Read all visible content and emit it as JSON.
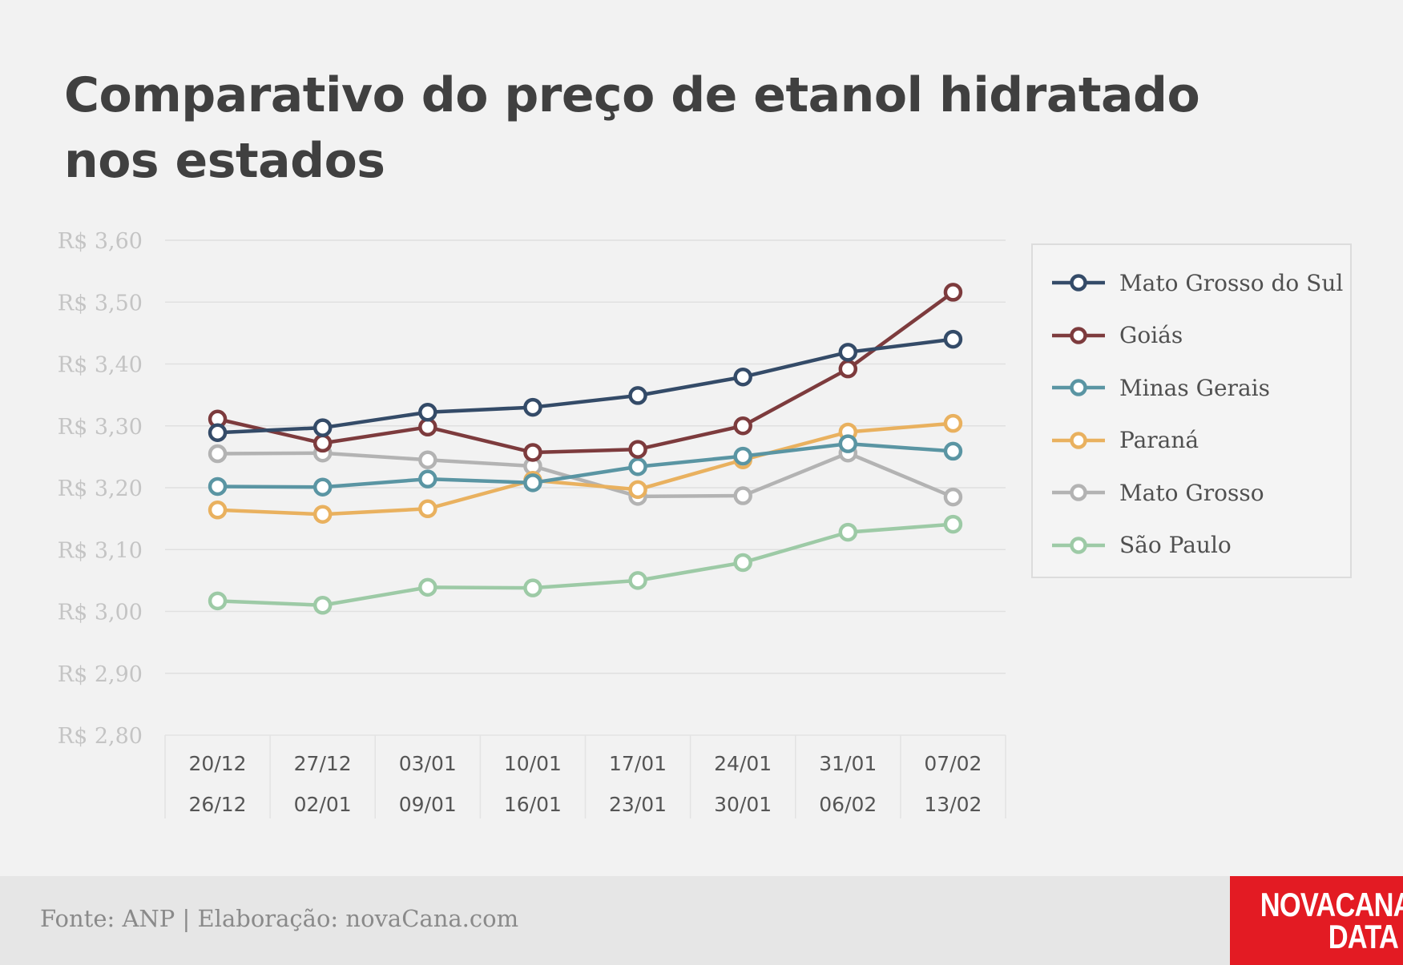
{
  "title": "Comparativo do preço de etanol hidratado nos estados",
  "footer": {
    "source": "Fonte: ANP | Elaboração: novaCana.com",
    "logo_line1": "NOVACANA",
    "logo_line2": "DATA",
    "logo_color": "#e31b23"
  },
  "chart_data": {
    "type": "line",
    "title": "Comparativo do preço de etanol hidratado nos estados",
    "categories": [
      [
        "20/12",
        "26/12"
      ],
      [
        "27/12",
        "02/01"
      ],
      [
        "03/01",
        "09/01"
      ],
      [
        "10/01",
        "16/01"
      ],
      [
        "17/01",
        "23/01"
      ],
      [
        "24/01",
        "30/01"
      ],
      [
        "31/01",
        "06/02"
      ],
      [
        "07/02",
        "13/02"
      ]
    ],
    "ylim": [
      2.8,
      3.6
    ],
    "yticks": [
      3.6,
      3.5,
      3.4,
      3.3,
      3.2,
      3.1,
      3.0,
      2.9,
      2.8
    ],
    "ytick_labels": [
      "R$ 3,60",
      "R$ 3,50",
      "R$ 3,40",
      "R$ 3,30",
      "R$ 3,20",
      "R$ 3,10",
      "R$ 3,00",
      "R$ 2,90",
      "R$ 2,80"
    ],
    "grid": true,
    "legend_position": "right",
    "series": [
      {
        "name": "Mato Grosso do Sul",
        "color": "#344b68",
        "values": [
          3.289,
          3.297,
          3.322,
          3.33,
          3.349,
          3.379,
          3.419,
          3.44
        ]
      },
      {
        "name": "Goiás",
        "color": "#7d3b3d",
        "values": [
          3.311,
          3.272,
          3.298,
          3.257,
          3.262,
          3.3,
          3.392,
          3.516
        ]
      },
      {
        "name": "Minas Gerais",
        "color": "#5a95a3",
        "values": [
          3.202,
          3.201,
          3.214,
          3.208,
          3.234,
          3.251,
          3.271,
          3.259
        ]
      },
      {
        "name": "Paraná",
        "color": "#e9b15f",
        "values": [
          3.164,
          3.157,
          3.166,
          3.212,
          3.197,
          3.245,
          3.29,
          3.304
        ]
      },
      {
        "name": "Mato Grosso",
        "color": "#b3b3b3",
        "values": [
          3.255,
          3.256,
          3.245,
          3.235,
          3.186,
          3.187,
          3.256,
          3.185
        ]
      },
      {
        "name": "São Paulo",
        "color": "#9dcaa6",
        "values": [
          3.017,
          3.01,
          3.039,
          3.038,
          3.05,
          3.079,
          3.128,
          3.141
        ]
      }
    ]
  }
}
